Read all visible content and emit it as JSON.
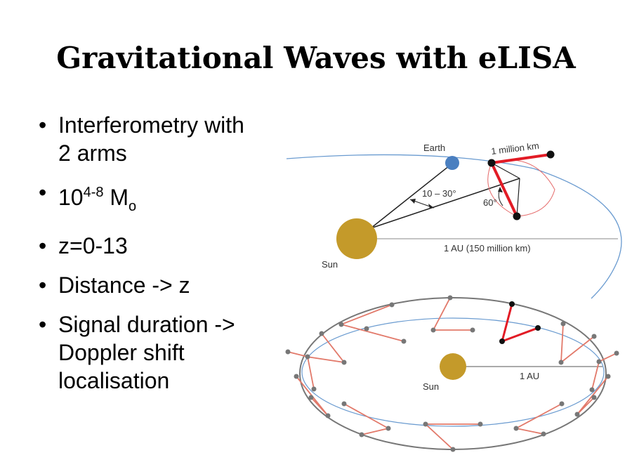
{
  "title": "Gravitational Waves with eLISA",
  "bullets": {
    "b1_line1": "Interferometry with",
    "b1_line2": "2 arms",
    "b2_base": "10",
    "b2_sup": "4-8",
    "b2_unit": " M",
    "b2_sub": "o",
    "b3": "z=0-13",
    "b4": "Distance -> z",
    "b5_line1": "Signal duration ->",
    "b5_line2": "Doppler shift",
    "b5_line3": "localisation"
  },
  "diagram": {
    "earth_label": "Earth",
    "arm_label": "1 million km",
    "angle_label": "10 – 30°",
    "angle60_label": "60°",
    "au_label_top": "1 AU (150 million km)",
    "sun_label_top": "Sun",
    "au_label_bottom": "1 AU",
    "sun_label_bottom": "Sun",
    "colors": {
      "sun": "#c49a2a",
      "earth": "#4a7fc0",
      "arm": "#e21b25",
      "orbit": "#6a9bd0",
      "faded_arm": "#e2796a",
      "ring": "#777777"
    }
  }
}
